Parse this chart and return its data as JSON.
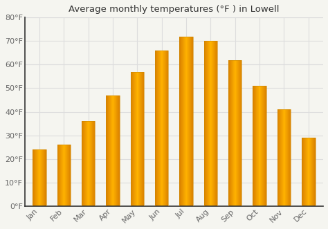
{
  "title": "Average monthly temperatures (°F ) in Lowell",
  "months": [
    "Jan",
    "Feb",
    "Mar",
    "Apr",
    "May",
    "Jun",
    "Jul",
    "Aug",
    "Sep",
    "Oct",
    "Nov",
    "Dec"
  ],
  "values": [
    24,
    26,
    36,
    47,
    57,
    66,
    72,
    70,
    62,
    51,
    41,
    29
  ],
  "bar_color_center": "#FFB300",
  "bar_color_edge": "#F08000",
  "background_color": "#F5F5F0",
  "plot_bg_color": "#F5F5F0",
  "grid_color": "#DDDDDD",
  "ylim": [
    0,
    80
  ],
  "yticks": [
    0,
    10,
    20,
    30,
    40,
    50,
    60,
    70,
    80
  ],
  "title_fontsize": 9.5,
  "tick_fontsize": 8,
  "bar_width": 0.55,
  "left_spine_color": "#333333"
}
